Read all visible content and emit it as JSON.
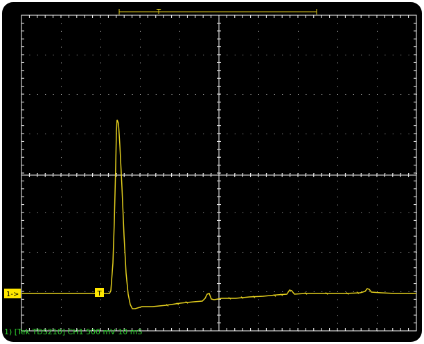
{
  "scope": {
    "channel_marker": "1->",
    "trigger_marker": "T",
    "trigger_position_marker": "T",
    "status_line": "1) [Tek TDS210] CH1 500 mV  10 mS",
    "colors": {
      "background": "#000000",
      "grid": "#ffffff",
      "trace": "#e6d11e",
      "marker_bg": "#ffe600",
      "status_text": "#2fd12f"
    }
  }
}
